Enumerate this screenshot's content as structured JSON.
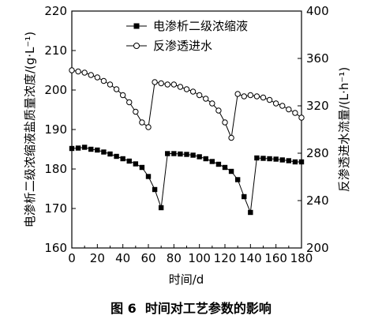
{
  "chart_data": {
    "type": "line",
    "xlabel": "时间/d",
    "ylabel_left": "电渗析二级浓缩液盐质量浓度/(g·L⁻¹)",
    "ylabel_right": "反渗透进水流量/(L·h⁻¹)",
    "xlim": [
      0,
      180
    ],
    "ylim_left": [
      160,
      220
    ],
    "ylim_right": [
      200,
      400
    ],
    "x_ticks": [
      0,
      20,
      40,
      60,
      80,
      100,
      120,
      140,
      160,
      180
    ],
    "y_left_ticks": [
      160,
      170,
      180,
      190,
      200,
      210,
      220
    ],
    "y_right_ticks": [
      200,
      240,
      280,
      320,
      360,
      400
    ],
    "legend_position": "top-center",
    "series": [
      {
        "name": "电渗析二级浓缩液",
        "axis": "left",
        "marker": "filled-square",
        "x": [
          0,
          5,
          10,
          15,
          20,
          25,
          30,
          35,
          40,
          45,
          50,
          55,
          60,
          65,
          70,
          75,
          80,
          85,
          90,
          95,
          100,
          105,
          110,
          115,
          120,
          125,
          130,
          135,
          140,
          145,
          150,
          155,
          160,
          165,
          170,
          175,
          180
        ],
        "y": [
          185.2,
          185.3,
          185.5,
          185.0,
          184.8,
          184.3,
          183.8,
          183.2,
          182.6,
          182.0,
          181.3,
          180.4,
          178.1,
          174.8,
          170.2,
          183.9,
          183.9,
          183.8,
          183.7,
          183.5,
          183.1,
          182.6,
          181.9,
          181.2,
          180.4,
          179.4,
          177.3,
          173.0,
          169.0,
          182.8,
          182.7,
          182.6,
          182.5,
          182.3,
          182.1,
          181.8,
          181.8
        ]
      },
      {
        "name": "反渗透进水流量",
        "legend_label": "反渗透进水",
        "axis": "right",
        "marker": "open-circle",
        "x": [
          0,
          5,
          10,
          15,
          20,
          25,
          30,
          35,
          40,
          45,
          50,
          55,
          60,
          65,
          70,
          75,
          80,
          85,
          90,
          95,
          100,
          105,
          110,
          115,
          120,
          125,
          130,
          135,
          140,
          145,
          150,
          155,
          160,
          165,
          170,
          175,
          180
        ],
        "y": [
          350,
          349,
          348,
          346,
          344,
          341,
          338,
          334,
          329,
          323,
          315,
          306,
          302,
          340,
          339,
          338,
          338,
          336,
          334,
          332,
          329,
          326,
          322,
          316,
          306,
          293,
          330,
          328,
          329,
          328,
          327,
          325,
          322,
          320,
          317,
          314,
          310
        ]
      }
    ],
    "legend": [
      {
        "label": "电渗析二级浓缩液",
        "marker": "filled-square"
      },
      {
        "label": "反渗透进水",
        "marker": "open-circle"
      }
    ],
    "caption": "图 6  时间对工艺参数的影响"
  }
}
